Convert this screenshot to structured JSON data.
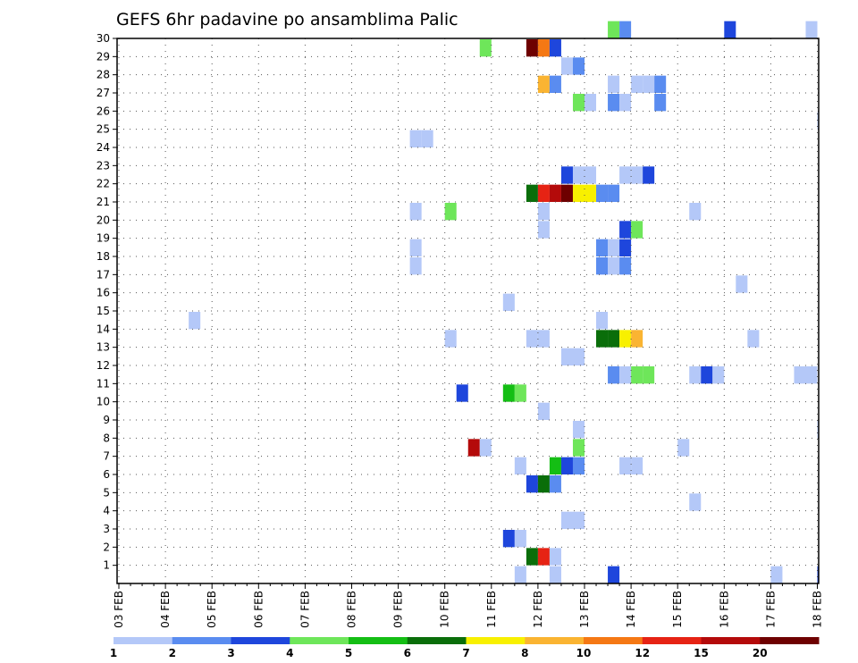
{
  "chart_data": {
    "type": "heatmap",
    "title": "GEFS 6hr padavine po ansamblima Palic",
    "xlabel": "",
    "ylabel": "",
    "x_tick_labels": [
      "03 FEB",
      "04 FEB",
      "05 FEB",
      "06 FEB",
      "07 FEB",
      "08 FEB",
      "09 FEB",
      "10 FEB",
      "11 FEB",
      "12 FEB",
      "13 FEB",
      "14 FEB",
      "15 FEB",
      "16 FEB",
      "17 FEB",
      "18 FEB"
    ],
    "x_step_hours": 6,
    "x_steps_per_day": 4,
    "y_tick_labels": [
      "1",
      "2",
      "3",
      "4",
      "5",
      "6",
      "7",
      "8",
      "9",
      "10",
      "11",
      "12",
      "13",
      "14",
      "15",
      "16",
      "17",
      "18",
      "19",
      "20",
      "21",
      "22",
      "23",
      "24",
      "25",
      "26",
      "27",
      "28",
      "29",
      "30"
    ],
    "ylim": [
      0,
      30
    ],
    "grid": true,
    "colorbar": {
      "labels": [
        "1",
        "2",
        "3",
        "4",
        "5",
        "6",
        "7",
        "8",
        "10",
        "12",
        "15",
        "20"
      ],
      "colors": [
        "#b4c8f8",
        "#5a8cf0",
        "#1e46dc",
        "#6ee65a",
        "#14be14",
        "#0a6e0a",
        "#f8f000",
        "#fab432",
        "#f57814",
        "#e62314",
        "#b40a0a",
        "#6e0000"
      ]
    },
    "cells": [
      {
        "m": 0,
        "s": 34,
        "c": 0
      },
      {
        "m": 0,
        "s": 37,
        "c": 0
      },
      {
        "m": 0,
        "s": 42,
        "c": 2
      },
      {
        "m": 0,
        "s": 56,
        "c": 0
      },
      {
        "m": 0,
        "s": 60,
        "c": 2
      },
      {
        "m": 0,
        "s": 61,
        "c": 3
      },
      {
        "m": 1,
        "s": 35,
        "c": 5
      },
      {
        "m": 1,
        "s": 36,
        "c": 9
      },
      {
        "m": 1,
        "s": 37,
        "c": 0
      },
      {
        "m": 2,
        "s": 33,
        "c": 2
      },
      {
        "m": 2,
        "s": 34,
        "c": 0
      },
      {
        "m": 3,
        "s": 38,
        "c": 0
      },
      {
        "m": 3,
        "s": 39,
        "c": 0
      },
      {
        "m": 4,
        "s": 49,
        "c": 0
      },
      {
        "m": 5,
        "s": 35,
        "c": 2
      },
      {
        "m": 5,
        "s": 36,
        "c": 5
      },
      {
        "m": 5,
        "s": 37,
        "c": 1
      },
      {
        "m": 6,
        "s": 34,
        "c": 0
      },
      {
        "m": 6,
        "s": 37,
        "c": 4
      },
      {
        "m": 6,
        "s": 38,
        "c": 2
      },
      {
        "m": 6,
        "s": 39,
        "c": 1
      },
      {
        "m": 6,
        "s": 43,
        "c": 0
      },
      {
        "m": 6,
        "s": 44,
        "c": 0
      },
      {
        "m": 7,
        "s": 30,
        "c": 10
      },
      {
        "m": 7,
        "s": 31,
        "c": 0
      },
      {
        "m": 7,
        "s": 39,
        "c": 3
      },
      {
        "m": 7,
        "s": 48,
        "c": 0
      },
      {
        "m": 8,
        "s": 39,
        "c": 0
      },
      {
        "m": 8,
        "s": 60,
        "c": 0
      },
      {
        "m": 9,
        "s": 36,
        "c": 0
      },
      {
        "m": 10,
        "s": 29,
        "c": 2
      },
      {
        "m": 10,
        "s": 33,
        "c": 4
      },
      {
        "m": 10,
        "s": 34,
        "c": 3
      },
      {
        "m": 11,
        "s": 42,
        "c": 1
      },
      {
        "m": 11,
        "s": 43,
        "c": 0
      },
      {
        "m": 11,
        "s": 44,
        "c": 3
      },
      {
        "m": 11,
        "s": 45,
        "c": 3
      },
      {
        "m": 11,
        "s": 49,
        "c": 0
      },
      {
        "m": 11,
        "s": 50,
        "c": 2
      },
      {
        "m": 11,
        "s": 51,
        "c": 0
      },
      {
        "m": 11,
        "s": 58,
        "c": 0
      },
      {
        "m": 11,
        "s": 59,
        "c": 0
      },
      {
        "m": 12,
        "s": 38,
        "c": 0
      },
      {
        "m": 12,
        "s": 39,
        "c": 0
      },
      {
        "m": 13,
        "s": 28,
        "c": 0
      },
      {
        "m": 13,
        "s": 35,
        "c": 0
      },
      {
        "m": 13,
        "s": 36,
        "c": 0
      },
      {
        "m": 13,
        "s": 41,
        "c": 5
      },
      {
        "m": 13,
        "s": 42,
        "c": 5
      },
      {
        "m": 13,
        "s": 43,
        "c": 6
      },
      {
        "m": 13,
        "s": 44,
        "c": 7
      },
      {
        "m": 13,
        "s": 54,
        "c": 0
      },
      {
        "m": 14,
        "s": 6,
        "c": 0
      },
      {
        "m": 14,
        "s": 41,
        "c": 0
      },
      {
        "m": 15,
        "s": 33,
        "c": 0
      },
      {
        "m": 16,
        "s": 53,
        "c": 0
      },
      {
        "m": 17,
        "s": 25,
        "c": 0
      },
      {
        "m": 17,
        "s": 41,
        "c": 1
      },
      {
        "m": 17,
        "s": 42,
        "c": 0
      },
      {
        "m": 17,
        "s": 43,
        "c": 1
      },
      {
        "m": 18,
        "s": 25,
        "c": 0
      },
      {
        "m": 18,
        "s": 41,
        "c": 1
      },
      {
        "m": 18,
        "s": 42,
        "c": 0
      },
      {
        "m": 18,
        "s": 43,
        "c": 2
      },
      {
        "m": 19,
        "s": 36,
        "c": 0
      },
      {
        "m": 19,
        "s": 43,
        "c": 2
      },
      {
        "m": 19,
        "s": 44,
        "c": 3
      },
      {
        "m": 20,
        "s": 25,
        "c": 0
      },
      {
        "m": 20,
        "s": 28,
        "c": 3
      },
      {
        "m": 20,
        "s": 36,
        "c": 0
      },
      {
        "m": 20,
        "s": 49,
        "c": 0
      },
      {
        "m": 21,
        "s": 35,
        "c": 5
      },
      {
        "m": 21,
        "s": 36,
        "c": 9
      },
      {
        "m": 21,
        "s": 37,
        "c": 10
      },
      {
        "m": 21,
        "s": 38,
        "c": 11
      },
      {
        "m": 21,
        "s": 39,
        "c": 6
      },
      {
        "m": 21,
        "s": 40,
        "c": 6
      },
      {
        "m": 21,
        "s": 41,
        "c": 1
      },
      {
        "m": 21,
        "s": 42,
        "c": 1
      },
      {
        "m": 22,
        "s": 38,
        "c": 2
      },
      {
        "m": 22,
        "s": 39,
        "c": 0
      },
      {
        "m": 22,
        "s": 40,
        "c": 0
      },
      {
        "m": 22,
        "s": 43,
        "c": 0
      },
      {
        "m": 22,
        "s": 44,
        "c": 0
      },
      {
        "m": 22,
        "s": 45,
        "c": 2
      },
      {
        "m": 24,
        "s": 25,
        "c": 0
      },
      {
        "m": 24,
        "s": 26,
        "c": 0
      },
      {
        "m": 25,
        "s": 60,
        "c": 0
      },
      {
        "m": 26,
        "s": 39,
        "c": 3
      },
      {
        "m": 26,
        "s": 40,
        "c": 0
      },
      {
        "m": 26,
        "s": 42,
        "c": 1
      },
      {
        "m": 26,
        "s": 43,
        "c": 0
      },
      {
        "m": 26,
        "s": 46,
        "c": 1
      },
      {
        "m": 27,
        "s": 36,
        "c": 7
      },
      {
        "m": 27,
        "s": 37,
        "c": 1
      },
      {
        "m": 27,
        "s": 42,
        "c": 0
      },
      {
        "m": 27,
        "s": 44,
        "c": 0
      },
      {
        "m": 27,
        "s": 45,
        "c": 0
      },
      {
        "m": 27,
        "s": 46,
        "c": 1
      },
      {
        "m": 28,
        "s": 38,
        "c": 0
      },
      {
        "m": 28,
        "s": 39,
        "c": 1
      },
      {
        "m": 29,
        "s": 31,
        "c": 3
      },
      {
        "m": 29,
        "s": 35,
        "c": 11
      },
      {
        "m": 29,
        "s": 36,
        "c": 8
      },
      {
        "m": 29,
        "s": 37,
        "c": 2
      },
      {
        "m": 30,
        "s": 42,
        "c": 3
      },
      {
        "m": 30,
        "s": 43,
        "c": 1
      },
      {
        "m": 30,
        "s": 52,
        "c": 2
      },
      {
        "m": 30,
        "s": 59,
        "c": 0
      }
    ]
  }
}
